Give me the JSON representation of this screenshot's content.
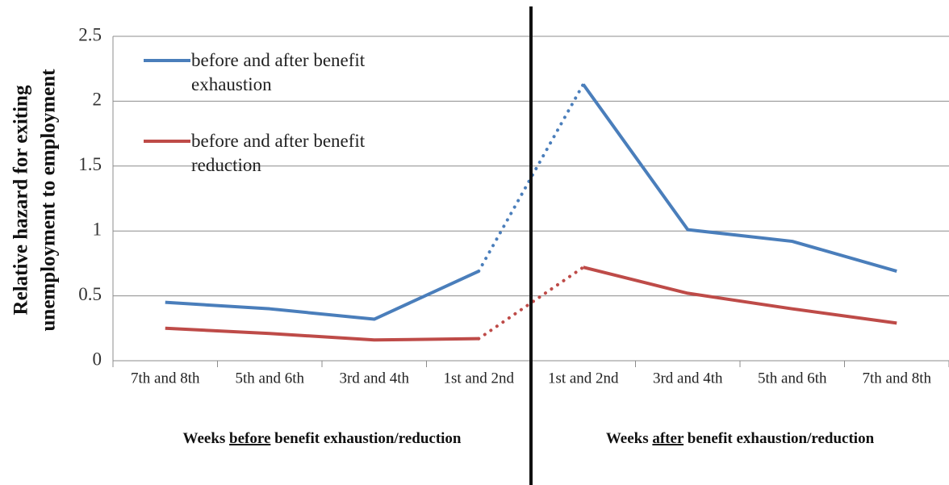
{
  "chart_data": {
    "type": "line",
    "ylabel": [
      "Relative hazard for exiting",
      "unemployment to employment"
    ],
    "groups": [
      {
        "label_parts": [
          {
            "text": "Weeks "
          },
          {
            "text": "before",
            "underline": true
          },
          {
            "text": " benefit exhaustion/reduction"
          }
        ],
        "categories": [
          "7th and 8th",
          "5th and 6th",
          "3rd and 4th",
          "1st and 2nd"
        ]
      },
      {
        "label_parts": [
          {
            "text": "Weeks "
          },
          {
            "text": "after",
            "underline": true
          },
          {
            "text": " benefit exhaustion/reduction"
          }
        ],
        "categories": [
          "1st and 2nd",
          "3rd and 4th",
          "5th and 6th",
          "7th and 8th"
        ]
      }
    ],
    "connector_style": "dotted",
    "series": [
      {
        "name": "before and after benefit exhaustion",
        "color": "#4a7ebb",
        "values": [
          0.45,
          0.4,
          0.32,
          0.69,
          2.13,
          1.01,
          0.92,
          0.69
        ]
      },
      {
        "name": "before and after benefit reduction",
        "color": "#be4b48",
        "values": [
          0.25,
          0.21,
          0.16,
          0.17,
          0.72,
          0.52,
          0.4,
          0.29
        ]
      }
    ],
    "ylim": [
      0,
      2.5
    ],
    "yticks": [
      0,
      0.5,
      1,
      1.5,
      2,
      2.5
    ],
    "grid": true
  }
}
